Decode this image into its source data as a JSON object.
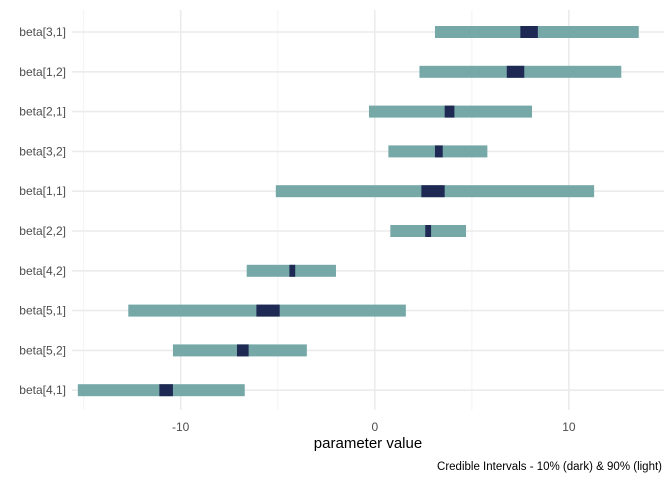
{
  "chart_data": {
    "type": "interval",
    "title": "",
    "xlabel": "parameter value",
    "ylabel": "",
    "caption": "Credible Intervals - 10% (dark) & 90% (light)",
    "xlim": [
      -15.6,
      14.9
    ],
    "xticks": [
      -10,
      0,
      10
    ],
    "xtick_labels": [
      "-10",
      "0",
      "10"
    ],
    "grid": true,
    "legend": "none",
    "colors": {
      "outer": "#76a8a8",
      "inner": "#1f2a54",
      "grid_major": "#ebebeb",
      "grid_minor": "#f4f4f4"
    },
    "parameters": [
      {
        "label": "beta[3,1]",
        "outer": [
          3.1,
          13.6
        ],
        "inner": [
          7.5,
          8.4
        ]
      },
      {
        "label": "beta[1,2]",
        "outer": [
          2.3,
          12.7
        ],
        "inner": [
          6.8,
          7.7
        ]
      },
      {
        "label": "beta[2,1]",
        "outer": [
          -0.3,
          8.1
        ],
        "inner": [
          3.6,
          4.1
        ]
      },
      {
        "label": "beta[3,2]",
        "outer": [
          0.7,
          5.8
        ],
        "inner": [
          3.1,
          3.5
        ]
      },
      {
        "label": "beta[1,1]",
        "outer": [
          -5.1,
          11.3
        ],
        "inner": [
          2.4,
          3.6
        ]
      },
      {
        "label": "beta[2,2]",
        "outer": [
          0.8,
          4.7
        ],
        "inner": [
          2.6,
          2.9
        ]
      },
      {
        "label": "beta[4,2]",
        "outer": [
          -6.6,
          -2.0
        ],
        "inner": [
          -4.4,
          -4.1
        ]
      },
      {
        "label": "beta[5,1]",
        "outer": [
          -12.7,
          1.6
        ],
        "inner": [
          -6.1,
          -4.9
        ]
      },
      {
        "label": "beta[5,2]",
        "outer": [
          -10.4,
          -3.5
        ],
        "inner": [
          -7.1,
          -6.5
        ]
      },
      {
        "label": "beta[4,1]",
        "outer": [
          -15.3,
          -6.7
        ],
        "inner": [
          -11.1,
          -10.4
        ]
      }
    ]
  }
}
